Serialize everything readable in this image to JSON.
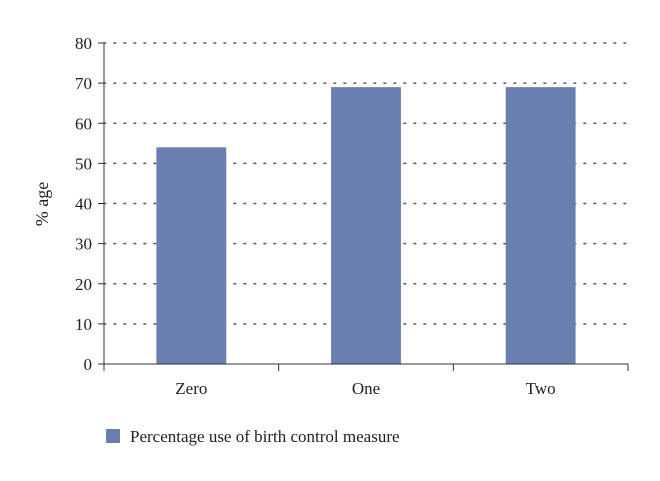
{
  "chart_data": {
    "type": "bar",
    "categories": [
      "Zero",
      "One",
      "Two"
    ],
    "series": [
      {
        "name": "Percentage use of birth control measure",
        "values": [
          54,
          69,
          69
        ],
        "color": "#6a7fb0"
      }
    ],
    "ylabel": "% age",
    "xlabel": "",
    "ylim": [
      0,
      80
    ],
    "yticks": [
      0,
      10,
      20,
      30,
      40,
      50,
      60,
      70,
      80
    ],
    "grid": "horizontal-dotted",
    "legend_position": "bottom-left"
  }
}
